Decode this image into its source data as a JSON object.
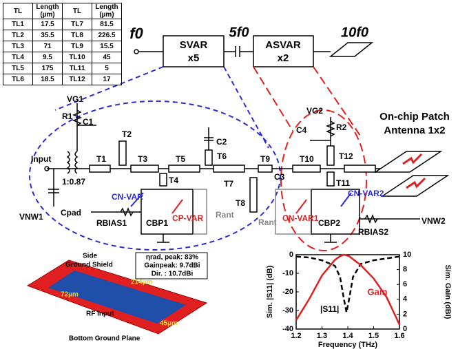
{
  "table": {
    "header": [
      "TL",
      "Length (µm)",
      "TL",
      "Length (µm)"
    ],
    "rows": [
      [
        "TL1",
        "17.5",
        "TL7",
        "81.5"
      ],
      [
        "TL2",
        "35.5",
        "TL8",
        "226.5"
      ],
      [
        "TL3",
        "71",
        "TL9",
        "15.5"
      ],
      [
        "TL4",
        "9.5",
        "TL10",
        "45"
      ],
      [
        "TL5",
        "175",
        "TL11",
        "5"
      ],
      [
        "TL6",
        "18.5",
        "TL12",
        "17"
      ]
    ]
  },
  "blocks": {
    "f_in": "f0",
    "svar": "SVAR",
    "svar_count": "x5",
    "f_mid": "5f0",
    "asvar": "ASVAR",
    "asvar_count": "x2",
    "f_out": "10f0"
  },
  "circuit": {
    "labels": [
      "Input",
      "VG1",
      "R1",
      "C1",
      "T1",
      "T2",
      "T3",
      "T4",
      "T5",
      "C2",
      "T6",
      "T7",
      "T8",
      "T9",
      "C3",
      "T10",
      "T11",
      "T12",
      "VG2",
      "R2",
      "C4",
      "1:0.87",
      "Cpad",
      "CN-VAR",
      "CP-VAR",
      "Rant",
      "VNW1",
      "RBIAS1",
      "CBP1",
      "Rant",
      "CN-VAR1",
      "CN-VAR2",
      "CBP2",
      "RBIAS2",
      "VNW2"
    ]
  },
  "antenna": {
    "title": [
      "On-chip Patch",
      "Antenna 1x2"
    ]
  },
  "inset": {
    "metrics": [
      "ηrad, peak: 83%",
      "Gainpeak: 9.7dBi",
      "Dir. : 10.7dBi"
    ],
    "labels": [
      "Side",
      "Ground Shield",
      "214µm",
      "72µm",
      "RF Input",
      "45µm",
      "Bottom Ground Plane"
    ]
  },
  "chart_data": {
    "type": "line",
    "xlabel": "Frequency (THz)",
    "ylabel": "Sim. |S11| (dB)",
    "y2label": "Sim. Gain (dBi)",
    "x": [
      1.2,
      1.25,
      1.3,
      1.35,
      1.37,
      1.385,
      1.395,
      1.405,
      1.42,
      1.45,
      1.5,
      1.55,
      1.6
    ],
    "series": [
      {
        "name": "|S11|",
        "color": "#000000",
        "dash": true,
        "values": [
          -1,
          -1.5,
          -3,
          -6,
          -12,
          -24,
          -31,
          -24,
          -12,
          -5,
          -3,
          -2,
          -1
        ]
      },
      {
        "name": "Gain",
        "color": "#e02020",
        "dash": false,
        "axis": "y2",
        "values": [
          1.2,
          4,
          7.2,
          9.3,
          9.8,
          10,
          9.9,
          9.8,
          9.4,
          8.6,
          6.8,
          4.3,
          0.6
        ]
      }
    ],
    "xlim": [
      1.2,
      1.6
    ],
    "xticks": [
      1.2,
      1.3,
      1.4,
      1.5,
      1.6
    ],
    "ylim": [
      -40,
      0
    ],
    "yticks": [
      0,
      -10,
      -20,
      -30,
      -40
    ],
    "y2lim": [
      0,
      10
    ],
    "y2ticks": [
      0,
      2,
      4,
      6,
      8,
      10
    ]
  }
}
